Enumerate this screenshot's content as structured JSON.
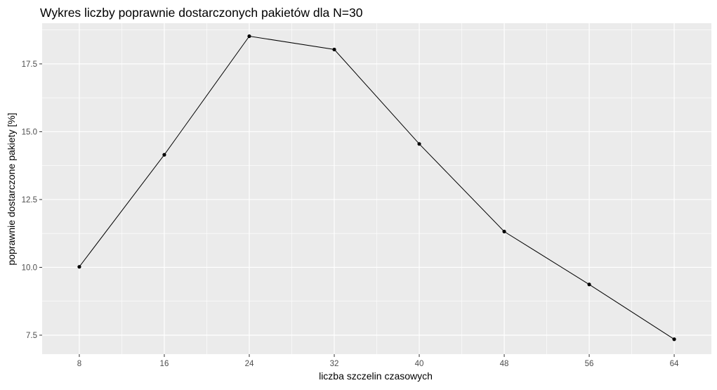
{
  "chart_data": {
    "type": "line",
    "title": "Wykres liczby poprawnie dostarczonych pakietów dla N=30",
    "xlabel": "liczba szczelin czasowych",
    "ylabel": "poprawnie dostarczone pakiety [%]",
    "x": [
      8,
      16,
      24,
      32,
      40,
      48,
      56,
      64
    ],
    "y": [
      10.02,
      14.15,
      18.52,
      18.03,
      14.55,
      11.32,
      9.37,
      7.35
    ],
    "xticks": [
      8,
      16,
      24,
      32,
      40,
      48,
      56,
      64
    ],
    "xtick_labels": [
      "8",
      "16",
      "24",
      "32",
      "40",
      "48",
      "56",
      "64"
    ],
    "yticks": [
      7.5,
      10.0,
      12.5,
      15.0,
      17.5
    ],
    "ytick_labels": [
      "7.5",
      "10.0",
      "12.5",
      "15.0",
      "17.5"
    ],
    "xlim": [
      4.5,
      67.5
    ],
    "ylim": [
      6.8,
      19.0
    ],
    "grid": true,
    "colors": {
      "panel_background": "#EBEBEB",
      "grid_line": "#FFFFFF",
      "series": "#000000",
      "tick_label": "#4D4D4D",
      "text": "#000000"
    }
  }
}
